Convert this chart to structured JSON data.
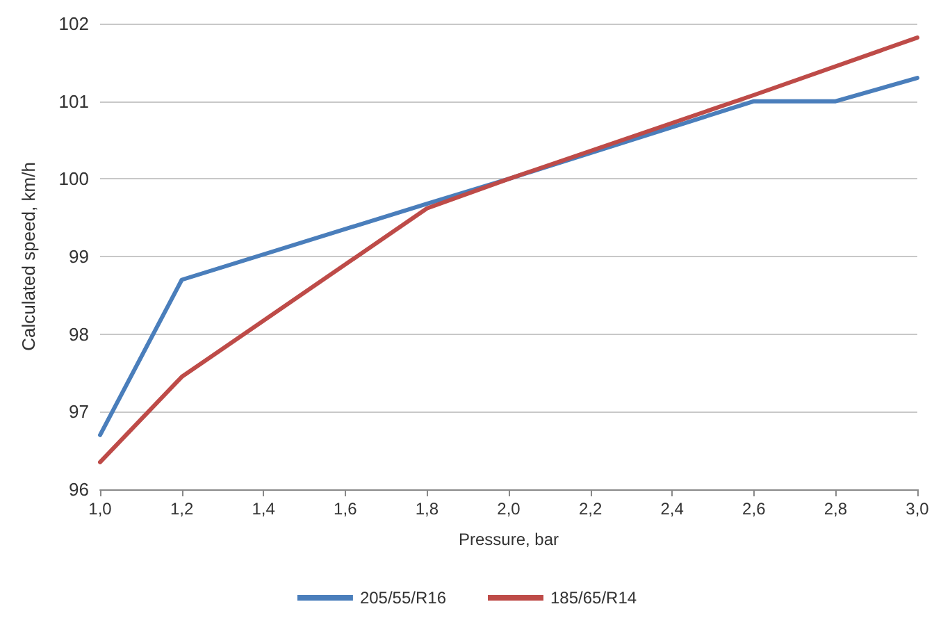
{
  "chart_data": {
    "type": "line",
    "xlabel": "Pressure, bar",
    "ylabel": "Calculated speed, km/h",
    "series": [
      {
        "name": "205/55/R16",
        "color": "#4a7ebb",
        "x": [
          1.0,
          1.2,
          1.8,
          2.0,
          2.6,
          2.8,
          3.0
        ],
        "values": [
          96.7,
          98.7,
          99.68,
          100,
          101,
          101,
          101.3
        ]
      },
      {
        "name": "185/65/R14",
        "color": "#be4b48",
        "x": [
          1.0,
          1.2,
          1.8,
          2.0,
          2.6,
          3.0
        ],
        "values": [
          96.35,
          97.45,
          99.62,
          100,
          101.08,
          101.82
        ]
      }
    ],
    "xlim": [
      1.0,
      3.0
    ],
    "xticks": [
      {
        "value": 1.0,
        "label": "1,0"
      },
      {
        "value": 1.2,
        "label": "1,2"
      },
      {
        "value": 1.4,
        "label": "1,4"
      },
      {
        "value": 1.6,
        "label": "1,6"
      },
      {
        "value": 1.8,
        "label": "1,8"
      },
      {
        "value": 2.0,
        "label": "2,0"
      },
      {
        "value": 2.2,
        "label": "2,2"
      },
      {
        "value": 2.4,
        "label": "2,4"
      },
      {
        "value": 2.6,
        "label": "2,6"
      },
      {
        "value": 2.8,
        "label": "2,8"
      },
      {
        "value": 3.0,
        "label": "3,0"
      }
    ],
    "ylim": [
      96,
      102
    ],
    "yticks": [
      96,
      97,
      98,
      99,
      100,
      101,
      102
    ],
    "grid": "y",
    "legend": "bottom",
    "marker": "none",
    "line_style": "solid"
  }
}
